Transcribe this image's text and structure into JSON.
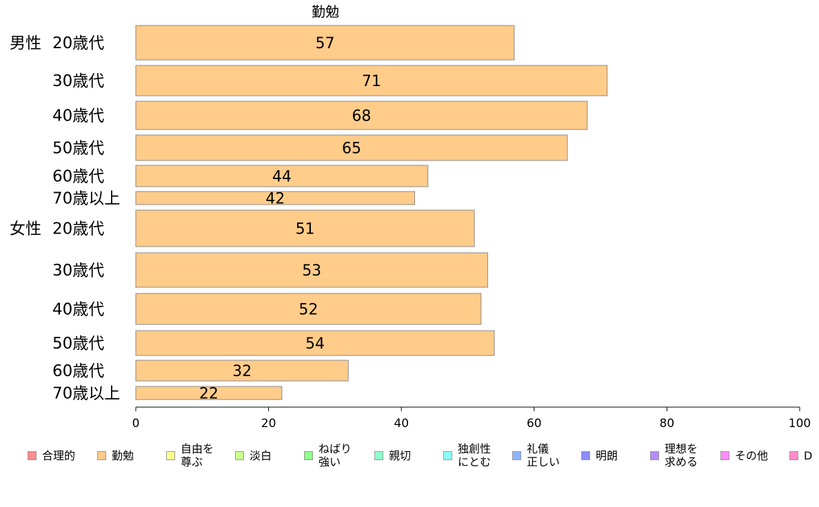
{
  "chart_data": {
    "type": "bar",
    "orientation": "horizontal",
    "title": "勤勉",
    "groups": [
      {
        "label": "男性",
        "categories": [
          "20歳代",
          "30歳代",
          "40歳代",
          "50歳代",
          "60歳代",
          "70歳以上"
        ]
      },
      {
        "label": "女性",
        "categories": [
          "20歳代",
          "30歳代",
          "40歳代",
          "50歳代",
          "60歳代",
          "70歳以上"
        ]
      }
    ],
    "series": [
      {
        "name": "勤勉",
        "color": "#FFCC8A",
        "values": [
          57,
          71,
          68,
          65,
          44,
          42,
          51,
          53,
          52,
          54,
          32,
          22
        ]
      }
    ],
    "xlim": [
      0,
      100
    ],
    "xticks": [
      "0",
      "20",
      "40",
      "60",
      "80",
      "100"
    ],
    "grid": false,
    "legend_position": "bottom"
  },
  "legend": {
    "items": [
      {
        "label": "合理的",
        "color": "#FF8C8C"
      },
      {
        "label": "勤勉",
        "color": "#FFCC8A"
      },
      {
        "label": "自由を\n尊ぶ",
        "color": "#FFFF8C"
      },
      {
        "label": "淡白",
        "color": "#CCFF8C"
      },
      {
        "label": "ねばり\n強い",
        "color": "#8CFF8C"
      },
      {
        "label": "親切",
        "color": "#8CFFCC"
      },
      {
        "label": "独創性\nにとむ",
        "color": "#8CFFFF"
      },
      {
        "label": "礼儀\n正しい",
        "color": "#8CB4FF"
      },
      {
        "label": "明朗",
        "color": "#8C8CFF"
      },
      {
        "label": "理想を\n求める",
        "color": "#B48CFF"
      },
      {
        "label": "その他",
        "color": "#FF8CFF"
      },
      {
        "label": "D",
        "color": "#FF8CC8"
      }
    ]
  }
}
